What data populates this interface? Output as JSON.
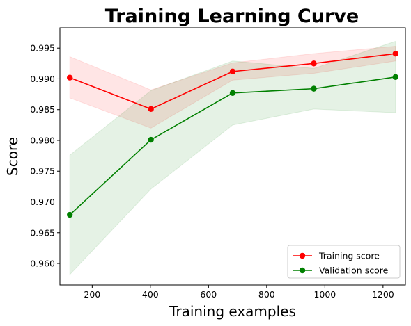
{
  "chart_data": {
    "type": "line",
    "title": "Training Learning Curve",
    "xlabel": "Training examples",
    "ylabel": "Score",
    "xlim": [
      89,
      1277
    ],
    "ylim": [
      0.9565,
      0.9983
    ],
    "x_ticks": [
      200,
      400,
      600,
      800,
      1000,
      1200
    ],
    "y_ticks": [
      0.96,
      0.965,
      0.97,
      0.975,
      0.98,
      0.985,
      0.99,
      0.995
    ],
    "x_tick_labels": [
      "200",
      "400",
      "600",
      "800",
      "1000",
      "1200"
    ],
    "y_tick_labels": [
      "0.960",
      "0.965",
      "0.970",
      "0.975",
      "0.980",
      "0.985",
      "0.990",
      "0.995"
    ],
    "grid": false,
    "legend_position": "lower-right",
    "x": [
      123,
      402,
      683,
      962,
      1243
    ],
    "series": [
      {
        "name": "Training score",
        "color": "#ff0000",
        "band_color": "#ff0000",
        "values": [
          0.9902,
          0.9851,
          0.9912,
          0.9925,
          0.9941
        ],
        "lower": [
          0.9869,
          0.982,
          0.9898,
          0.9909,
          0.9929
        ],
        "upper": [
          0.9936,
          0.9882,
          0.9926,
          0.9941,
          0.9953
        ]
      },
      {
        "name": "Validation score",
        "color": "#008000",
        "band_color": "#008000",
        "values": [
          0.9679,
          0.9801,
          0.9877,
          0.9884,
          0.9903
        ],
        "lower": [
          0.9582,
          0.9721,
          0.9825,
          0.9851,
          0.9845
        ],
        "upper": [
          0.9776,
          0.9881,
          0.9929,
          0.9917,
          0.9961
        ]
      }
    ]
  }
}
